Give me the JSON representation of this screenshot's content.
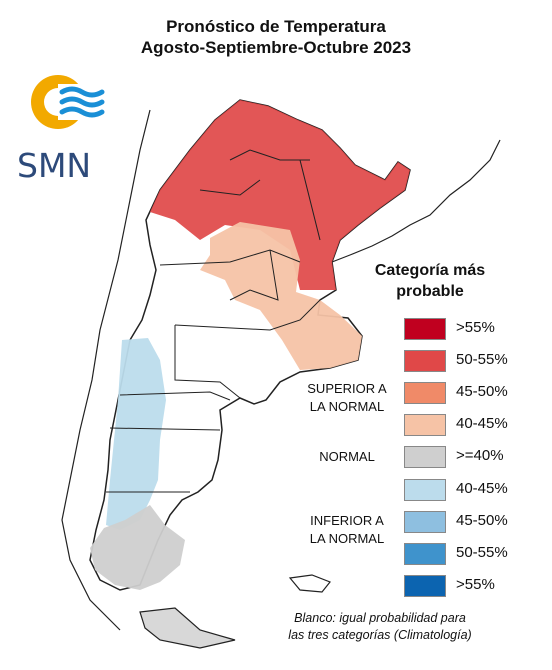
{
  "title": {
    "line1": "Pronóstico de Temperatura",
    "line2": "Agosto-Septiembre-Octubre 2023"
  },
  "logo": {
    "text": "SMN",
    "icon": "smn-logo",
    "colors": {
      "sun": "#f2a900",
      "waves": "#1a8fd6"
    }
  },
  "legend": {
    "title_line1": "Categoría más",
    "title_line2": "probable",
    "items": [
      {
        "label": ">55%",
        "color": "#c0001f"
      },
      {
        "label": "50-55%",
        "color": "#e04848"
      },
      {
        "label": "45-50%",
        "color": "#f08a68"
      },
      {
        "label": "40-45%",
        "color": "#f6c3a6"
      },
      {
        "label": ">=40%",
        "color": "#cfcfcf"
      },
      {
        "label": "40-45%",
        "color": "#bcdcec"
      },
      {
        "label": "45-50%",
        "color": "#8ebfe0"
      },
      {
        "label": "50-55%",
        "color": "#3f93cc"
      },
      {
        "label": ">55%",
        "color": "#0c64b0"
      }
    ],
    "groups": {
      "superior_line1": "SUPERIOR A",
      "superior_line2": "LA NORMAL",
      "normal": "NORMAL",
      "inferior_line1": "INFERIOR A",
      "inferior_line2": "LA NORMAL"
    }
  },
  "note": {
    "line1": "Blanco: igual probabilidad para",
    "line2": "las tres categorías (Climatología)"
  }
}
